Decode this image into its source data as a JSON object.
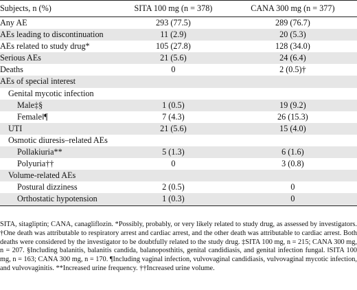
{
  "table": {
    "headers": [
      "Subjects, n (%)",
      "SITA 100 mg (n = 378)",
      "CANA 300 mg (n = 377)"
    ],
    "rows": [
      {
        "label": "Any AE",
        "sita": "293 (77.5)",
        "cana": "289 (76.7)",
        "indent": 0
      },
      {
        "label": "AEs leading to discontinuation",
        "sita": "11 (2.9)",
        "cana": "20 (5.3)",
        "indent": 0
      },
      {
        "label": "AEs related to study drug*",
        "sita": "105 (27.8)",
        "cana": "128 (34.0)",
        "indent": 0
      },
      {
        "label": "Serious AEs",
        "sita": "21 (5.6)",
        "cana": "24 (6.4)",
        "indent": 0
      },
      {
        "label": "Deaths",
        "sita": "0",
        "cana": "2 (0.5)†",
        "indent": 0
      },
      {
        "label": "AEs of special interest",
        "sita": "",
        "cana": "",
        "indent": 0
      },
      {
        "label": "Genital mycotic infection",
        "sita": "",
        "cana": "",
        "indent": 1
      },
      {
        "label": "Male‡§",
        "sita": "1 (0.5)",
        "cana": "19 (9.2)",
        "indent": 2
      },
      {
        "label": "Female‖¶",
        "sita": "7 (4.3)",
        "cana": "26 (15.3)",
        "indent": 2
      },
      {
        "label": "UTI",
        "sita": "21 (5.6)",
        "cana": "15 (4.0)",
        "indent": 1
      },
      {
        "label": "Osmotic diuresis–related AEs",
        "sita": "",
        "cana": "",
        "indent": 1
      },
      {
        "label": "Pollakiuria**",
        "sita": "5 (1.3)",
        "cana": "6 (1.6)",
        "indent": 2
      },
      {
        "label": "Polyuria††",
        "sita": "0",
        "cana": "3 (0.8)",
        "indent": 2
      },
      {
        "label": "Volume-related AEs",
        "sita": "",
        "cana": "",
        "indent": 1
      },
      {
        "label": "Postural dizziness",
        "sita": "2 (0.5)",
        "cana": "0",
        "indent": 2
      },
      {
        "label": "Orthostatic hypotension",
        "sita": "1 (0.3)",
        "cana": "0",
        "indent": 2
      }
    ]
  },
  "footnote": "SITA, sitagliptin; CANA, canagliflozin. *Possibly, probably, or very likely related to study drug, as assessed by investigators. †One death was attributable to respiratory arrest and cardiac arrest, and the other death was attributable to cardiac arrest. Both deaths were considered by the investigator to be doubtfully related to the study drug. ‡SITA 100 mg, n = 215; CANA 300 mg, n = 207. §Including balanitis, balanitis candida, balanoposthitis, genital candidiasis, and genital infection fungal. ‖SITA 100 mg, n = 163; CANA 300 mg, n = 170. ¶Including vaginal infection, vulvovaginal candidiasis, vulvovaginal mycotic infection, and vulvovaginitis. **Increased urine frequency. ††Increased urine volume."
}
